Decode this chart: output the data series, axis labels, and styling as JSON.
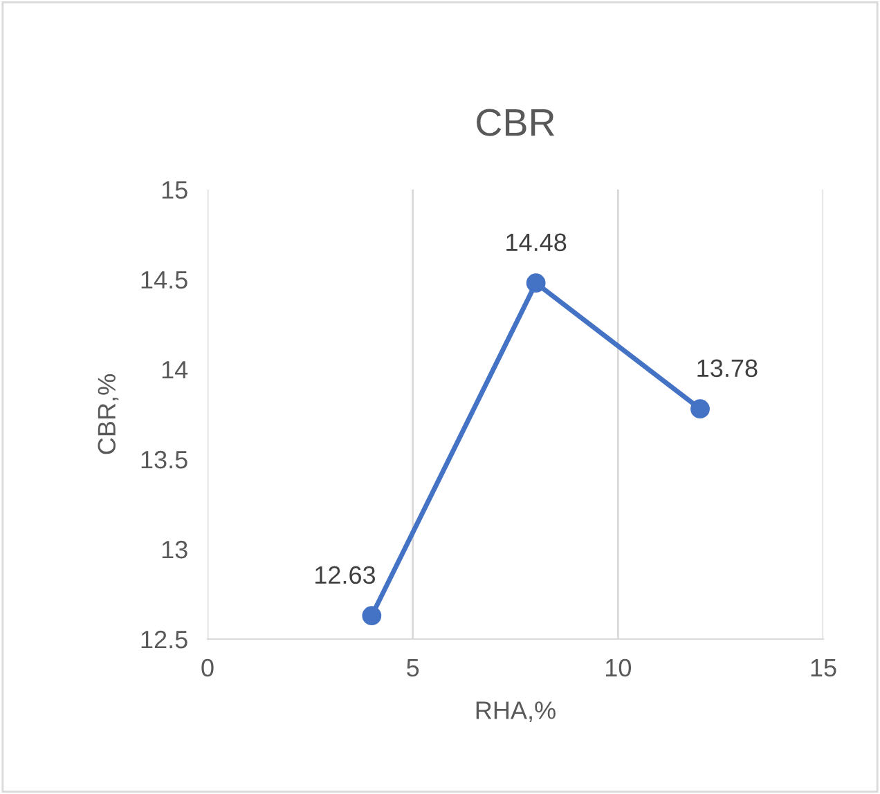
{
  "chart_data": {
    "type": "line",
    "title": "CBR",
    "xlabel": "RHA,%",
    "ylabel": "CBR,%",
    "x": [
      4,
      8,
      12
    ],
    "series": [
      {
        "color": "#4472c4",
        "values": [
          12.63,
          14.48,
          13.78
        ]
      }
    ],
    "xlim": [
      0,
      15
    ],
    "xticks": [
      0,
      5,
      10,
      15
    ],
    "ylim": [
      12.5,
      15
    ],
    "yticks": [
      12.5,
      13,
      13.5,
      14,
      14.5,
      15
    ],
    "grid": "x",
    "marker": "circle",
    "line_style": "solid",
    "data_labels": true,
    "legend": false
  }
}
